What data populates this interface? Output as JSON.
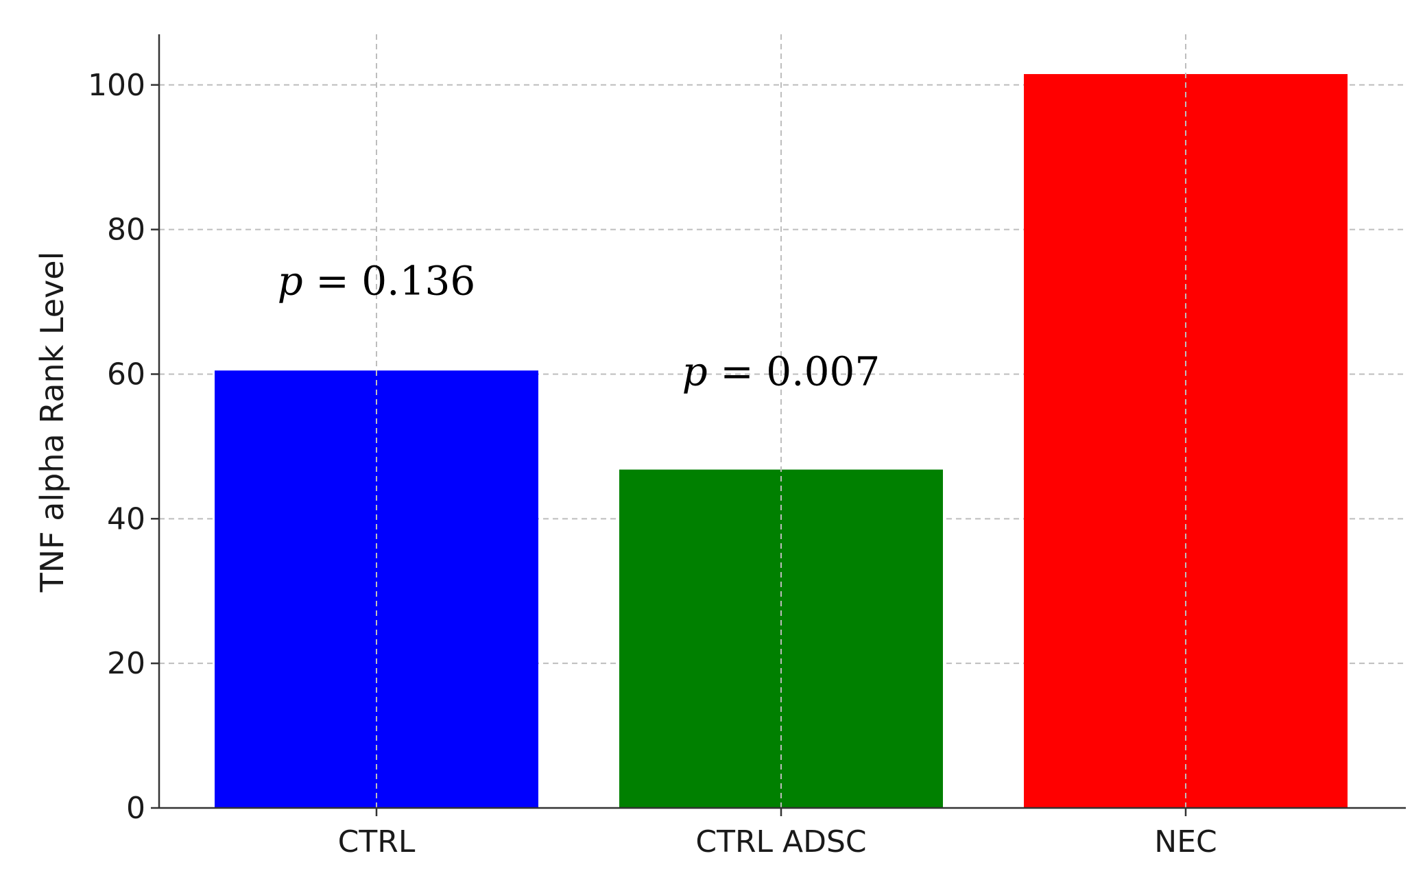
{
  "chart_data": {
    "type": "bar",
    "title": "",
    "xlabel": "",
    "ylabel": "TNF alpha Rank Level",
    "categories": [
      "CTRL",
      "CTRL ADSC",
      "NEC"
    ],
    "values": [
      60.5,
      46.8,
      101.5
    ],
    "colors": [
      "#0000ff",
      "#008000",
      "#ff0000"
    ],
    "ylim": [
      0,
      107
    ],
    "yticks": [
      0,
      20,
      40,
      60,
      80,
      100
    ],
    "grid": true,
    "annotations": [
      {
        "p_symbol": "p",
        "text": " = 0.136",
        "category": "CTRL",
        "y": 71
      },
      {
        "p_symbol": "p",
        "text": " = 0.007",
        "category": "CTRL ADSC",
        "y": 58.5
      }
    ]
  }
}
